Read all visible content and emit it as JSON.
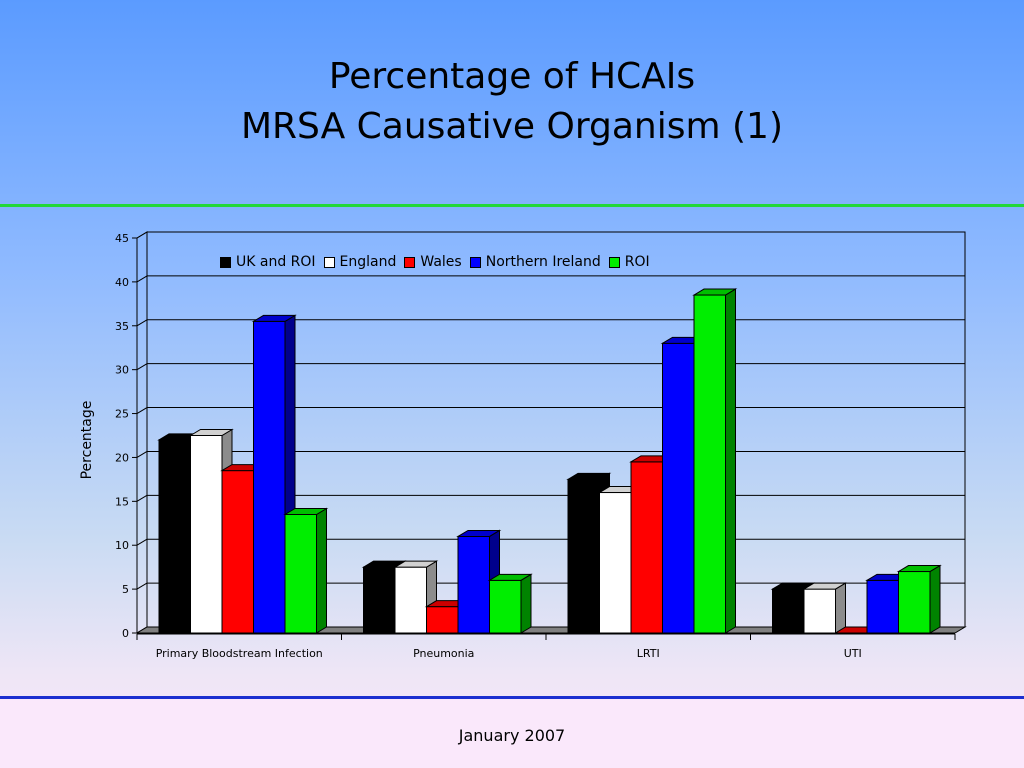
{
  "slide": {
    "title_line1": "Percentage of HCAIs",
    "title_line2": "MRSA Causative Organism (1)",
    "footer": "January 2007",
    "colors": {
      "rule_top": "#22d83a",
      "rule_bottom": "#1c2fd0"
    }
  },
  "chart_data": {
    "type": "bar",
    "title": "",
    "xlabel": "",
    "ylabel": "Percentage",
    "ylim": [
      0,
      45
    ],
    "yticks": [
      0,
      5,
      10,
      15,
      20,
      25,
      30,
      35,
      40,
      45
    ],
    "grid": true,
    "legend_position": "top",
    "style": "3d-clustered",
    "categories": [
      "Primary Bloodstream Infection",
      "Pneumonia",
      "LRTI",
      "UTI"
    ],
    "series": [
      {
        "name": "UK and ROI",
        "color": "#000000",
        "values": [
          22,
          7.5,
          17.5,
          5
        ]
      },
      {
        "name": "England",
        "color": "#ffffff",
        "values": [
          22.5,
          7.5,
          16,
          5
        ]
      },
      {
        "name": "Wales",
        "color": "#ff0000",
        "values": [
          18.5,
          3,
          19.5,
          0
        ]
      },
      {
        "name": "Northern Ireland",
        "color": "#0000ff",
        "values": [
          35.5,
          11,
          33,
          6
        ]
      },
      {
        "name": "ROI",
        "color": "#00ee00",
        "values": [
          13.5,
          6,
          38.5,
          7
        ]
      }
    ]
  }
}
